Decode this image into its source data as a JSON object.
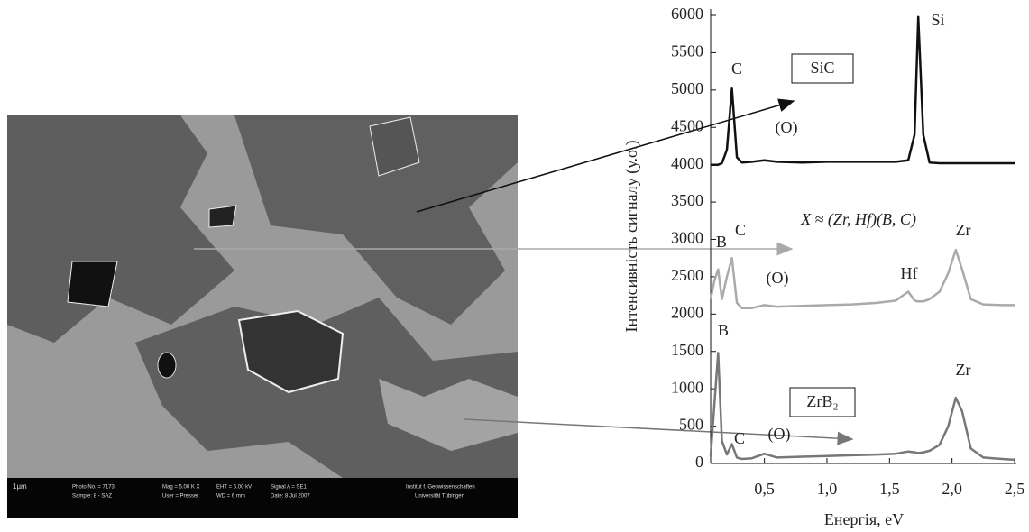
{
  "chart_data": {
    "type": "line",
    "x_label": "Енергія, eV",
    "y_label": "Інтенсивність сигналу (у.о.)",
    "x": [
      0.07,
      0.1,
      0.13,
      0.16,
      0.2,
      0.24,
      0.28,
      0.32,
      0.4,
      0.5,
      0.6,
      0.8,
      1.0,
      1.2,
      1.4,
      1.55,
      1.65,
      1.7,
      1.73,
      1.77,
      1.82,
      1.9,
      1.97,
      2.03,
      2.08,
      2.15,
      2.25,
      2.4,
      2.5
    ],
    "series": [
      {
        "name": "SiC",
        "color": "#111111",
        "values": [
          4000,
          4000,
          4000,
          4020,
          4200,
          5020,
          4100,
          4030,
          4040,
          4060,
          4040,
          4030,
          4040,
          4040,
          4040,
          4040,
          4060,
          4400,
          5980,
          4400,
          4030,
          4020,
          4020,
          4020,
          4020,
          4020,
          4020,
          4020,
          4020
        ]
      },
      {
        "name": "X ≈ (Zr, Hf)(B, C)",
        "color": "#aaaaaa",
        "values": [
          2200,
          2450,
          2600,
          2200,
          2500,
          2750,
          2150,
          2080,
          2080,
          2120,
          2100,
          2110,
          2120,
          2130,
          2150,
          2180,
          2300,
          2180,
          2170,
          2170,
          2200,
          2300,
          2550,
          2860,
          2600,
          2200,
          2130,
          2120,
          2120
        ]
      },
      {
        "name": "ZrB₂",
        "color": "#777777",
        "values": [
          100,
          800,
          1480,
          300,
          120,
          260,
          80,
          60,
          70,
          130,
          80,
          90,
          100,
          110,
          120,
          130,
          160,
          150,
          140,
          150,
          170,
          250,
          500,
          880,
          700,
          200,
          80,
          60,
          50
        ]
      }
    ],
    "annotations": [
      "Si",
      "C",
      "(O)",
      "B",
      "C",
      "(O)",
      "Hf",
      "Zr",
      "B",
      "C",
      "(O)",
      "Zr"
    ],
    "xlim": [
      0.07,
      2.5
    ],
    "xticks": [
      {
        "value": 0.5,
        "label": "0,5"
      },
      {
        "value": 1.0,
        "label": "1,0"
      },
      {
        "value": 1.5,
        "label": "1,5"
      },
      {
        "value": 2.0,
        "label": "2,0"
      },
      {
        "value": 2.5,
        "label": "2,5"
      }
    ],
    "ylim": [
      0,
      6000
    ],
    "yticks": [
      0,
      500,
      1000,
      1500,
      2000,
      2500,
      3000,
      3500,
      4000,
      4500,
      5000,
      5500,
      6000
    ]
  },
  "image_caption": [
    "1µm",
    "Photo No. = 7173",
    "Sample: 8 - SAZ",
    "Mag = 5.00 K X",
    "User = Presser",
    "EHT = 5.00 kV",
    "WD = 6 mm",
    "Signal A = SE1",
    "Date: 8 Jul 2007",
    "Institut f. Geowissenschaften",
    "Universität Tübingen"
  ]
}
